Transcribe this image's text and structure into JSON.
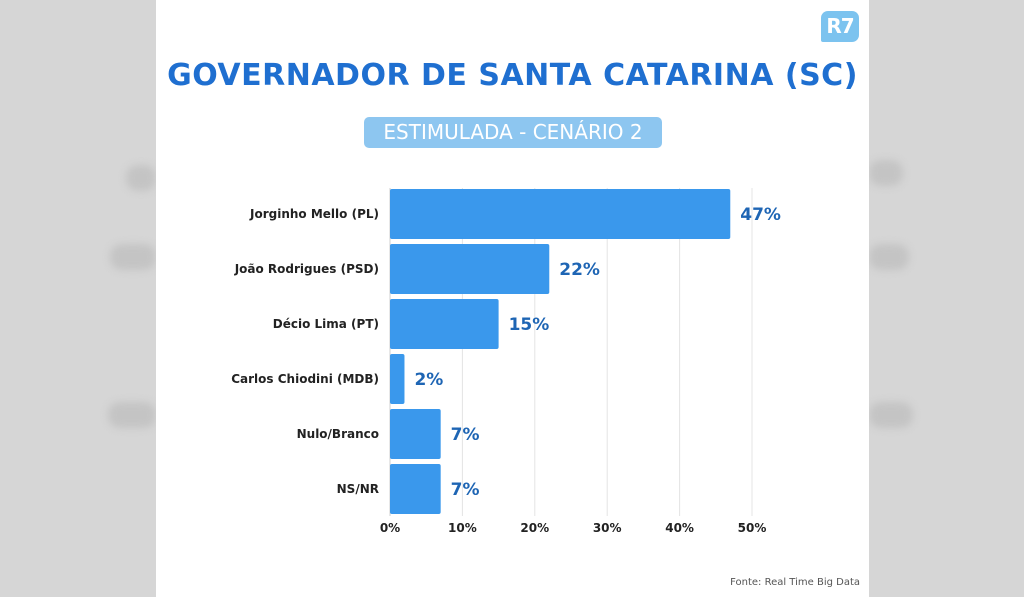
{
  "header": {
    "logo_text": "R7",
    "title": "GOVERNADOR DE SANTA CATARINA (SC)",
    "subtitle": "ESTIMULADA - CENÁRIO 2"
  },
  "footer": {
    "source": "Fonte: Real Time Big Data"
  },
  "colors": {
    "bar": "#3a98ec",
    "title": "#1f6fd0",
    "value_label": "#1e65b4",
    "subtitle_bg": "#8dc6f0"
  },
  "chart_data": {
    "type": "bar",
    "orientation": "horizontal",
    "title": "GOVERNADOR DE SANTA CATARINA (SC)",
    "subtitle": "ESTIMULADA - CENÁRIO 2",
    "categories": [
      "Jorginho Mello (PL)",
      "João Rodrigues (PSD)",
      "Décio Lima (PT)",
      "Carlos Chiodini (MDB)",
      "Nulo/Branco",
      "NS/NR"
    ],
    "values": [
      47,
      22,
      15,
      2,
      7,
      7
    ],
    "value_labels": [
      "47%",
      "22%",
      "15%",
      "2%",
      "7%",
      "7%"
    ],
    "xlim": [
      0,
      50
    ],
    "x_ticks": [
      0,
      10,
      20,
      30,
      40,
      50
    ],
    "x_tick_labels": [
      "0%",
      "10%",
      "20%",
      "30%",
      "40%",
      "50%"
    ],
    "xlabel": "",
    "ylabel": "",
    "grid": true,
    "legend": "none"
  }
}
